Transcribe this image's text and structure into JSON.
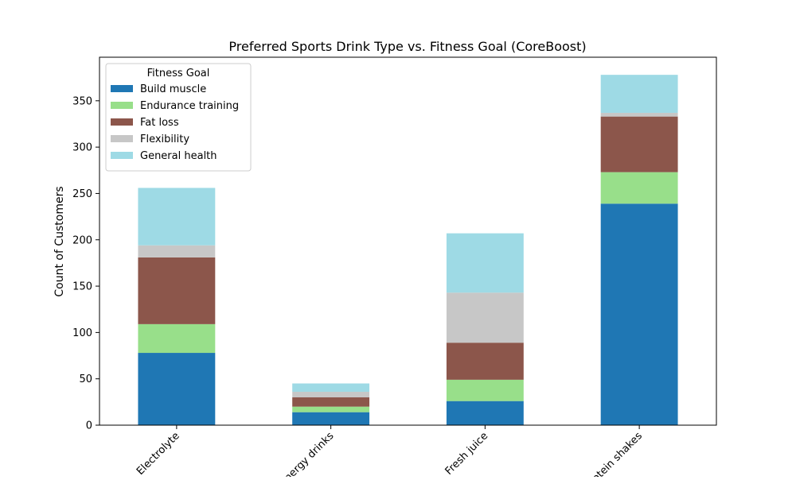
{
  "chart_data": {
    "type": "bar",
    "stacked": true,
    "title": "Preferred Sports Drink Type vs. Fitness Goal (CoreBoost)",
    "xlabel": "",
    "ylabel": "Count of Customers",
    "categories": [
      "Electrolyte",
      "Energy drinks",
      "Fresh juice",
      "Protein shakes"
    ],
    "ylim": [
      0,
      397
    ],
    "yticks": [
      0,
      50,
      100,
      150,
      200,
      250,
      300,
      350
    ],
    "legend": {
      "title": "Fitness Goal",
      "placement": "top-left"
    },
    "series": [
      {
        "name": "Build muscle",
        "color": "#1f77b4",
        "values": [
          78,
          14,
          26,
          239
        ]
      },
      {
        "name": "Endurance training",
        "color": "#98df8a",
        "values": [
          31,
          6,
          23,
          34
        ]
      },
      {
        "name": "Fat loss",
        "color": "#8c564b",
        "values": [
          72,
          10,
          40,
          60
        ]
      },
      {
        "name": "Flexibility",
        "color": "#c7c7c7",
        "values": [
          13,
          6,
          54,
          4
        ]
      },
      {
        "name": "General health",
        "color": "#9edae5",
        "values": [
          62,
          9,
          64,
          41
        ]
      }
    ]
  }
}
